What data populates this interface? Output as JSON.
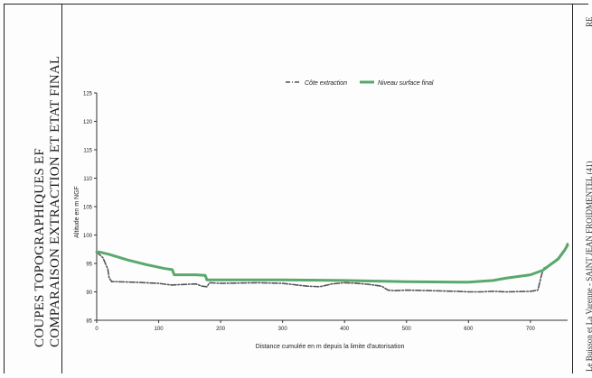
{
  "page": {
    "title_line1": "COUPES TOPOGRAPHIQUES EF",
    "title_line2": "COMPARAISON EXTRACTION ET ETAT FINAL",
    "side_note": "Le Buisson et La Varenne - SAINT JEAN FROIDMENTEL (41)",
    "corner_mark": "RE"
  },
  "colors": {
    "final_surface": "#5aa86c",
    "extraction": "#555555",
    "frame": "#222222"
  },
  "chart_data": {
    "type": "line",
    "xlabel": "Distance cumulée en m depuis la limite d'autorisation",
    "ylabel": "Altitude en m NGF",
    "xlim": [
      0,
      760
    ],
    "ylim": [
      85,
      125
    ],
    "x_ticks": [
      0,
      100,
      200,
      300,
      400,
      500,
      600,
      700
    ],
    "y_ticks": [
      85,
      90,
      95,
      100,
      105,
      110,
      115,
      120,
      125
    ],
    "x_tick_labels": [
      "0",
      "100",
      "200",
      "300",
      "400",
      "500",
      "600",
      "700"
    ],
    "y_tick_labels": [
      "85",
      "90",
      "95",
      "100",
      "105",
      "110",
      "115",
      "120",
      "125"
    ],
    "legend_position": "top",
    "series": [
      {
        "name": "Côte extraction",
        "style": "dash-dot",
        "x": [
          0,
          10,
          18,
          20,
          24,
          30,
          60,
          100,
          120,
          140,
          160,
          170,
          178,
          182,
          200,
          260,
          300,
          340,
          360,
          380,
          400,
          420,
          440,
          460,
          470,
          480,
          500,
          540,
          580,
          600,
          620,
          640,
          660,
          700,
          712,
          718,
          722,
          730,
          745,
          755,
          760
        ],
        "y": [
          97.0,
          96.0,
          94.0,
          92.5,
          91.8,
          91.8,
          91.7,
          91.5,
          91.2,
          91.3,
          91.4,
          91.0,
          90.9,
          91.6,
          91.5,
          91.6,
          91.5,
          91.0,
          90.9,
          91.4,
          91.6,
          91.5,
          91.3,
          91.0,
          90.3,
          90.2,
          90.3,
          90.2,
          90.1,
          90.0,
          90.0,
          90.1,
          90.0,
          90.1,
          90.3,
          93.0,
          94.2,
          94.5,
          96.0,
          97.5,
          98.5
        ]
      },
      {
        "name": "Niveau surface final",
        "style": "solid",
        "x": [
          0,
          5,
          20,
          50,
          80,
          110,
          122,
          125,
          160,
          175,
          178,
          200,
          300,
          400,
          500,
          600,
          640,
          660,
          700,
          720,
          730,
          745,
          755,
          760
        ],
        "y": [
          97.0,
          97.0,
          96.6,
          95.6,
          94.8,
          94.1,
          93.9,
          93.0,
          93.0,
          92.9,
          92.1,
          92.1,
          92.1,
          92.0,
          91.8,
          91.7,
          92.0,
          92.4,
          93.0,
          93.8,
          94.6,
          95.8,
          97.3,
          98.2
        ]
      }
    ]
  }
}
